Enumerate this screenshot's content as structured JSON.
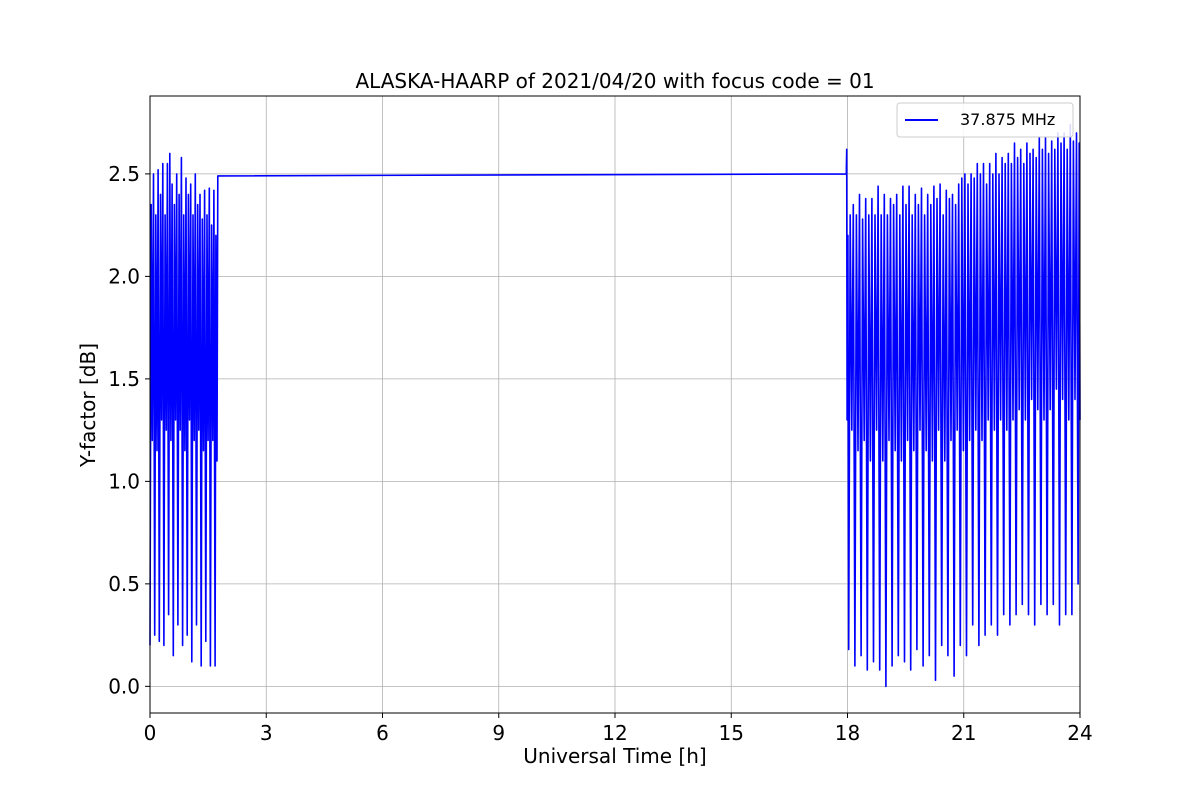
{
  "chart_data": {
    "type": "line",
    "title": "ALASKA-HAARP of 2021/04/20 with focus code = 01",
    "xlabel": "Universal Time [h]",
    "ylabel": "Y-factor [dB]",
    "xlim": [
      0,
      24
    ],
    "ylim": [
      -0.13,
      2.88
    ],
    "xticks": [
      0,
      3,
      6,
      9,
      12,
      15,
      18,
      21,
      24
    ],
    "xtick_labels": [
      "0",
      "3",
      "6",
      "9",
      "12",
      "15",
      "18",
      "21",
      "24"
    ],
    "yticks": [
      0.0,
      0.5,
      1.0,
      1.5,
      2.0,
      2.5
    ],
    "ytick_labels": [
      "0.0",
      "0.5",
      "1.0",
      "1.5",
      "2.0",
      "2.5"
    ],
    "grid": true,
    "legend_position": "top-right",
    "series": [
      {
        "name": "37.875 MHz",
        "color": "#0000ff",
        "points": [
          [
            0.0,
            0.2
          ],
          [
            0.03,
            2.35
          ],
          [
            0.06,
            1.2
          ],
          [
            0.09,
            2.5
          ],
          [
            0.12,
            0.25
          ],
          [
            0.15,
            2.3
          ],
          [
            0.18,
            1.15
          ],
          [
            0.21,
            2.52
          ],
          [
            0.24,
            0.22
          ],
          [
            0.27,
            2.4
          ],
          [
            0.3,
            1.3
          ],
          [
            0.33,
            2.55
          ],
          [
            0.36,
            0.2
          ],
          [
            0.39,
            2.3
          ],
          [
            0.42,
            1.25
          ],
          [
            0.45,
            2.55
          ],
          [
            0.48,
            0.35
          ],
          [
            0.51,
            2.6
          ],
          [
            0.54,
            1.2
          ],
          [
            0.57,
            2.45
          ],
          [
            0.6,
            0.15
          ],
          [
            0.63,
            2.35
          ],
          [
            0.66,
            1.3
          ],
          [
            0.69,
            2.5
          ],
          [
            0.72,
            0.3
          ],
          [
            0.75,
            2.4
          ],
          [
            0.78,
            1.25
          ],
          [
            0.81,
            2.58
          ],
          [
            0.84,
            0.2
          ],
          [
            0.87,
            2.3
          ],
          [
            0.9,
            1.15
          ],
          [
            0.93,
            2.48
          ],
          [
            0.96,
            0.25
          ],
          [
            0.99,
            2.4
          ],
          [
            1.02,
            1.3
          ],
          [
            1.05,
            2.45
          ],
          [
            1.08,
            0.12
          ],
          [
            1.11,
            2.3
          ],
          [
            1.14,
            1.2
          ],
          [
            1.17,
            2.5
          ],
          [
            1.2,
            0.3
          ],
          [
            1.23,
            2.35
          ],
          [
            1.26,
            1.25
          ],
          [
            1.29,
            2.4
          ],
          [
            1.32,
            0.1
          ],
          [
            1.35,
            2.28
          ],
          [
            1.38,
            1.15
          ],
          [
            1.41,
            2.42
          ],
          [
            1.44,
            0.22
          ],
          [
            1.47,
            2.3
          ],
          [
            1.5,
            1.2
          ],
          [
            1.53,
            2.43
          ],
          [
            1.56,
            0.1
          ],
          [
            1.59,
            2.25
          ],
          [
            1.62,
            1.2
          ],
          [
            1.65,
            2.42
          ],
          [
            1.68,
            0.1
          ],
          [
            1.7,
            2.2
          ],
          [
            1.73,
            1.1
          ],
          [
            1.75,
            2.49
          ],
          [
            17.97,
            2.5
          ],
          [
            17.98,
            2.62
          ],
          [
            17.99,
            1.3
          ],
          [
            18.01,
            2.2
          ],
          [
            18.03,
            0.18
          ],
          [
            18.07,
            2.3
          ],
          [
            18.11,
            1.25
          ],
          [
            18.15,
            2.35
          ],
          [
            18.19,
            0.1
          ],
          [
            18.23,
            2.3
          ],
          [
            18.27,
            1.15
          ],
          [
            18.31,
            2.4
          ],
          [
            18.35,
            0.15
          ],
          [
            18.39,
            2.28
          ],
          [
            18.43,
            1.2
          ],
          [
            18.47,
            2.38
          ],
          [
            18.51,
            0.08
          ],
          [
            18.55,
            2.3
          ],
          [
            18.59,
            1.1
          ],
          [
            18.63,
            2.38
          ],
          [
            18.67,
            0.12
          ],
          [
            18.71,
            2.3
          ],
          [
            18.75,
            1.25
          ],
          [
            18.79,
            2.44
          ],
          [
            18.83,
            0.08
          ],
          [
            18.87,
            2.3
          ],
          [
            18.91,
            1.1
          ],
          [
            18.95,
            2.4
          ],
          [
            18.99,
            0.0
          ],
          [
            19.03,
            2.3
          ],
          [
            19.07,
            1.2
          ],
          [
            19.11,
            2.38
          ],
          [
            19.15,
            0.1
          ],
          [
            19.19,
            2.35
          ],
          [
            19.23,
            1.15
          ],
          [
            19.27,
            2.4
          ],
          [
            19.31,
            0.15
          ],
          [
            19.35,
            2.3
          ],
          [
            19.39,
            1.1
          ],
          [
            19.43,
            2.44
          ],
          [
            19.47,
            0.12
          ],
          [
            19.51,
            2.35
          ],
          [
            19.55,
            1.2
          ],
          [
            19.59,
            2.44
          ],
          [
            19.63,
            0.08
          ],
          [
            19.67,
            2.3
          ],
          [
            19.71,
            1.15
          ],
          [
            19.75,
            2.4
          ],
          [
            19.79,
            0.18
          ],
          [
            19.83,
            2.35
          ],
          [
            19.87,
            1.25
          ],
          [
            19.91,
            2.43
          ],
          [
            19.95,
            0.1
          ],
          [
            19.99,
            2.3
          ],
          [
            20.03,
            1.15
          ],
          [
            20.07,
            2.4
          ],
          [
            20.11,
            0.15
          ],
          [
            20.15,
            2.35
          ],
          [
            20.19,
            1.1
          ],
          [
            20.23,
            2.44
          ],
          [
            20.27,
            0.03
          ],
          [
            20.31,
            2.38
          ],
          [
            20.35,
            1.25
          ],
          [
            20.39,
            2.45
          ],
          [
            20.43,
            0.2
          ],
          [
            20.47,
            2.3
          ],
          [
            20.51,
            1.1
          ],
          [
            20.55,
            2.42
          ],
          [
            20.59,
            0.15
          ],
          [
            20.63,
            2.38
          ],
          [
            20.67,
            1.2
          ],
          [
            20.71,
            2.4
          ],
          [
            20.75,
            0.05
          ],
          [
            20.79,
            2.35
          ],
          [
            20.83,
            1.25
          ],
          [
            20.87,
            2.45
          ],
          [
            20.91,
            0.2
          ],
          [
            20.95,
            2.48
          ],
          [
            20.99,
            1.15
          ],
          [
            21.03,
            2.5
          ],
          [
            21.07,
            0.15
          ],
          [
            21.11,
            2.45
          ],
          [
            21.15,
            1.2
          ],
          [
            21.19,
            2.5
          ],
          [
            21.23,
            0.3
          ],
          [
            21.27,
            2.48
          ],
          [
            21.31,
            1.25
          ],
          [
            21.35,
            2.55
          ],
          [
            21.39,
            0.2
          ],
          [
            21.43,
            2.5
          ],
          [
            21.47,
            1.2
          ],
          [
            21.51,
            2.55
          ],
          [
            21.55,
            0.25
          ],
          [
            21.59,
            2.45
          ],
          [
            21.63,
            1.3
          ],
          [
            21.67,
            2.55
          ],
          [
            21.71,
            0.3
          ],
          [
            21.75,
            2.5
          ],
          [
            21.79,
            1.25
          ],
          [
            21.83,
            2.6
          ],
          [
            21.87,
            0.25
          ],
          [
            21.91,
            2.5
          ],
          [
            21.95,
            1.3
          ],
          [
            21.99,
            2.58
          ],
          [
            22.03,
            0.35
          ],
          [
            22.07,
            2.55
          ],
          [
            22.11,
            1.25
          ],
          [
            22.15,
            2.6
          ],
          [
            22.19,
            0.3
          ],
          [
            22.23,
            2.55
          ],
          [
            22.27,
            1.3
          ],
          [
            22.31,
            2.65
          ],
          [
            22.35,
            0.35
          ],
          [
            22.39,
            2.58
          ],
          [
            22.43,
            1.35
          ],
          [
            22.47,
            2.62
          ],
          [
            22.51,
            0.4
          ],
          [
            22.55,
            2.55
          ],
          [
            22.59,
            1.3
          ],
          [
            22.63,
            2.65
          ],
          [
            22.67,
            0.35
          ],
          [
            22.71,
            2.6
          ],
          [
            22.75,
            1.4
          ],
          [
            22.79,
            2.62
          ],
          [
            22.83,
            0.3
          ],
          [
            22.87,
            2.58
          ],
          [
            22.91,
            1.35
          ],
          [
            22.95,
            2.68
          ],
          [
            22.99,
            0.4
          ],
          [
            23.03,
            2.62
          ],
          [
            23.07,
            1.3
          ],
          [
            23.11,
            2.68
          ],
          [
            23.15,
            0.35
          ],
          [
            23.19,
            2.6
          ],
          [
            23.23,
            1.35
          ],
          [
            23.27,
            2.66
          ],
          [
            23.31,
            0.4
          ],
          [
            23.35,
            2.62
          ],
          [
            23.39,
            1.45
          ],
          [
            23.43,
            2.7
          ],
          [
            23.47,
            0.3
          ],
          [
            23.51,
            2.65
          ],
          [
            23.55,
            1.4
          ],
          [
            23.59,
            2.7
          ],
          [
            23.63,
            0.35
          ],
          [
            23.67,
            2.62
          ],
          [
            23.71,
            1.3
          ],
          [
            23.75,
            2.74
          ],
          [
            23.79,
            0.35
          ],
          [
            23.83,
            2.66
          ],
          [
            23.87,
            1.4
          ],
          [
            23.91,
            2.7
          ],
          [
            23.95,
            0.5
          ],
          [
            23.98,
            2.65
          ],
          [
            24.0,
            1.3
          ]
        ]
      }
    ]
  }
}
